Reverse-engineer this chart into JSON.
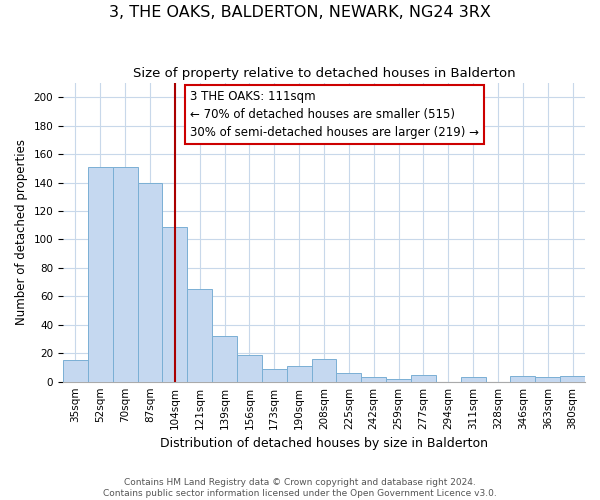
{
  "title": "3, THE OAKS, BALDERTON, NEWARK, NG24 3RX",
  "subtitle": "Size of property relative to detached houses in Balderton",
  "xlabel": "Distribution of detached houses by size in Balderton",
  "ylabel": "Number of detached properties",
  "bar_labels": [
    "35sqm",
    "52sqm",
    "70sqm",
    "87sqm",
    "104sqm",
    "121sqm",
    "139sqm",
    "156sqm",
    "173sqm",
    "190sqm",
    "208sqm",
    "225sqm",
    "242sqm",
    "259sqm",
    "277sqm",
    "294sqm",
    "311sqm",
    "328sqm",
    "346sqm",
    "363sqm",
    "380sqm"
  ],
  "bar_values": [
    15,
    151,
    151,
    140,
    109,
    65,
    32,
    19,
    9,
    11,
    16,
    6,
    3,
    2,
    5,
    0,
    3,
    0,
    4,
    3,
    4
  ],
  "bar_color": "#c5d8f0",
  "bar_edge_color": "#7aafd4",
  "vline_pos": 4.5,
  "vline_color": "#aa0000",
  "annotation_title": "3 THE OAKS: 111sqm",
  "annotation_line1": "← 70% of detached houses are smaller (515)",
  "annotation_line2": "30% of semi-detached houses are larger (219) →",
  "annotation_box_color": "#ffffff",
  "annotation_box_edge": "#cc0000",
  "ylim": [
    0,
    210
  ],
  "yticks": [
    0,
    20,
    40,
    60,
    80,
    100,
    120,
    140,
    160,
    180,
    200
  ],
  "footer1": "Contains HM Land Registry data © Crown copyright and database right 2024.",
  "footer2": "Contains public sector information licensed under the Open Government Licence v3.0.",
  "background_color": "#ffffff",
  "grid_color": "#c8d8ea",
  "title_fontsize": 11.5,
  "subtitle_fontsize": 9.5,
  "xlabel_fontsize": 9,
  "ylabel_fontsize": 8.5,
  "tick_fontsize": 7.5,
  "annotation_fontsize": 8.5,
  "footer_fontsize": 6.5
}
